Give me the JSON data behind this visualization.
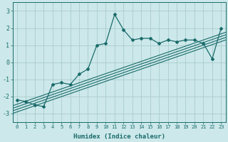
{
  "xlabel": "Humidex (Indice chaleur)",
  "bg_color": "#cce8ea",
  "grid_color": "#aacccc",
  "line_color": "#1a6b6b",
  "xlim": [
    -0.5,
    23.5
  ],
  "ylim": [
    -3.5,
    3.5
  ],
  "xticks": [
    0,
    1,
    2,
    3,
    4,
    5,
    6,
    7,
    8,
    9,
    10,
    11,
    12,
    13,
    14,
    15,
    16,
    17,
    18,
    19,
    20,
    21,
    22,
    23
  ],
  "yticks": [
    -3,
    -2,
    -1,
    0,
    1,
    2,
    3
  ],
  "main_x": [
    0,
    1,
    2,
    3,
    4,
    5,
    6,
    7,
    8,
    9,
    10,
    11,
    12,
    13,
    14,
    15,
    16,
    17,
    18,
    19,
    20,
    21,
    22,
    23
  ],
  "main_y": [
    -2.2,
    -2.3,
    -2.5,
    -2.6,
    -1.3,
    -1.2,
    -1.3,
    -0.7,
    -0.4,
    1.0,
    1.1,
    2.8,
    1.9,
    1.3,
    1.4,
    1.4,
    1.1,
    1.3,
    1.2,
    1.3,
    1.3,
    1.1,
    0.2,
    2.0
  ],
  "reg_lines": [
    [
      [
        -0.5,
        23.5
      ],
      [
        -2.55,
        1.75
      ]
    ],
    [
      [
        -0.5,
        23.5
      ],
      [
        -2.7,
        1.6
      ]
    ],
    [
      [
        -0.5,
        23.5
      ],
      [
        -2.85,
        1.45
      ]
    ],
    [
      [
        -0.5,
        23.5
      ],
      [
        -3.0,
        1.3
      ]
    ]
  ],
  "tick_fontsize": 5,
  "label_fontsize": 6.5
}
